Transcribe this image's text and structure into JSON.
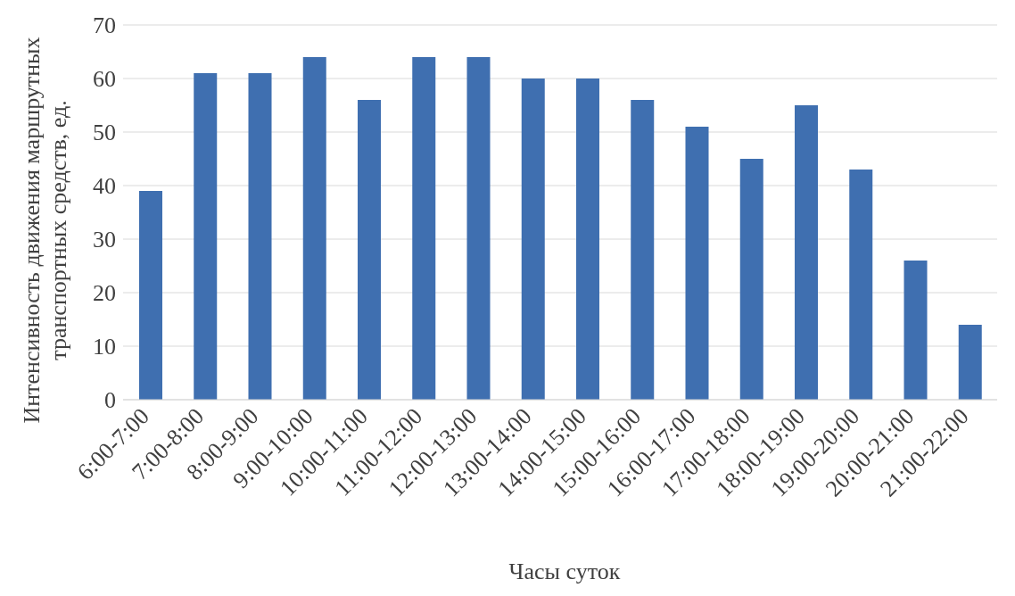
{
  "chart_data": {
    "type": "bar",
    "xlabel": "Часы суток",
    "ylabel": "Интенсивность движения маршрутных транспортных средств, ед.",
    "categories": [
      "6:00-7:00",
      "7:00-8:00",
      "8:00-9:00",
      "9:00-10:00",
      "10:00-11:00",
      "11:00-12:00",
      "12:00-13:00",
      "13:00-14:00",
      "14:00-15:00",
      "15:00-16:00",
      "16:00-17:00",
      "17:00-18:00",
      "18:00-19:00",
      "19:00-20:00",
      "20:00-21:00",
      "21:00-22:00"
    ],
    "values": [
      39,
      61,
      61,
      64,
      56,
      64,
      64,
      60,
      60,
      56,
      51,
      45,
      55,
      43,
      26,
      14
    ],
    "color": "#3f6fb0",
    "ylim": [
      0,
      70
    ],
    "yticks": [
      0,
      10,
      20,
      30,
      40,
      50,
      60,
      70
    ],
    "grid": "y"
  }
}
